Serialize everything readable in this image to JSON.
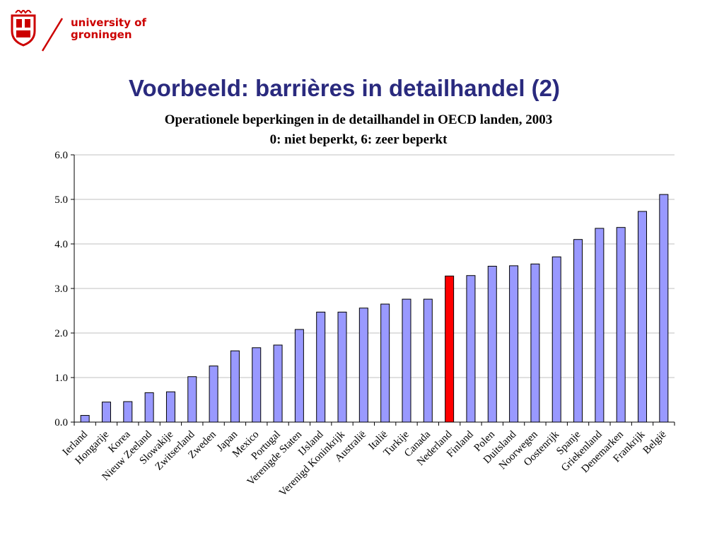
{
  "logo": {
    "line1": "university of",
    "line2": "groningen"
  },
  "slide_title": "Voorbeeld: barrières in detailhandel (2)",
  "colors": {
    "bar": "#9999ff",
    "highlight": "#ff0000",
    "title": "#2a2a7e",
    "logo": "#cc0000",
    "grid": "#c0c0c0"
  },
  "chart_data": {
    "type": "bar",
    "title": "Operationele beperkingen in de detailhandel in OECD landen, 2003",
    "subtitle": "0: niet beperkt, 6: zeer beperkt",
    "xlabel": "",
    "ylabel": "",
    "ylim": [
      0,
      6
    ],
    "y_ticks": [
      "0.0",
      "1.0",
      "2.0",
      "3.0",
      "4.0",
      "5.0",
      "6.0"
    ],
    "grid": true,
    "highlight": "Nederland",
    "categories": [
      "Ierland",
      "Hongarije",
      "Korea",
      "Nieuw Zeeland",
      "Slowakije",
      "Zwitserland",
      "Zweden",
      "Japan",
      "Mexico",
      "Portugal",
      "Verenigde Staten",
      "IJsland",
      "Verenigd Koninkrijk",
      "Australië",
      "Italië",
      "Turkije",
      "Canada",
      "Nederland",
      "Finland",
      "Polen",
      "Duitsland",
      "Noorwegen",
      "Oostenrijk",
      "Spanje",
      "Griekenland",
      "Denemarken",
      "Frankrijk",
      "België"
    ],
    "values": [
      0.15,
      0.45,
      0.46,
      0.66,
      0.68,
      1.02,
      1.26,
      1.6,
      1.67,
      1.73,
      2.08,
      2.47,
      2.47,
      2.56,
      2.65,
      2.76,
      2.76,
      3.28,
      3.29,
      3.5,
      3.51,
      3.55,
      3.71,
      4.1,
      4.35,
      4.37,
      4.73,
      5.11
    ]
  }
}
